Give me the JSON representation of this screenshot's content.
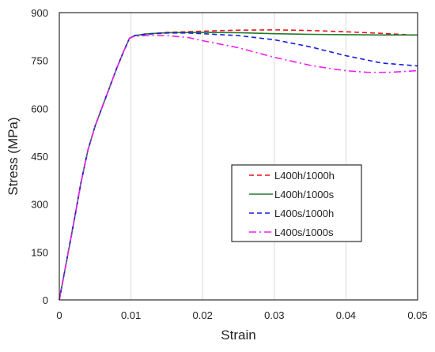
{
  "chart_data": {
    "type": "line",
    "title": "",
    "xlabel": "Strain",
    "ylabel": "Stress (MPa)",
    "xlim": [
      0,
      0.05
    ],
    "ylim": [
      0,
      900
    ],
    "xticks": [
      0,
      0.01,
      0.02,
      0.03,
      0.04,
      0.05
    ],
    "xtick_labels": [
      "0",
      "0.01",
      "0.02",
      "0.03",
      "0.04",
      "0.05"
    ],
    "yticks": [
      0,
      150,
      300,
      450,
      600,
      750,
      900
    ],
    "ytick_labels": [
      "0",
      "150",
      "300",
      "450",
      "600",
      "750",
      "900"
    ],
    "grid": "vertical",
    "legend_position": "center-right",
    "series": [
      {
        "name": "L400h/1000h",
        "color": "#e8141e",
        "dash": "dashed",
        "x": [
          0,
          0.001,
          0.002,
          0.003,
          0.004,
          0.005,
          0.006,
          0.007,
          0.008,
          0.009,
          0.0098,
          0.0105,
          0.012,
          0.015,
          0.02,
          0.025,
          0.03,
          0.035,
          0.04,
          0.045,
          0.05
        ],
        "y": [
          0,
          120,
          240,
          365,
          470,
          545,
          605,
          665,
          725,
          780,
          820,
          828,
          833,
          838,
          842,
          845,
          846,
          844,
          840,
          835,
          829
        ]
      },
      {
        "name": "L400h/1000s",
        "color": "#1e7a2c",
        "dash": "solid",
        "x": [
          0,
          0.001,
          0.002,
          0.003,
          0.004,
          0.005,
          0.006,
          0.007,
          0.008,
          0.009,
          0.0098,
          0.0105,
          0.012,
          0.015,
          0.02,
          0.025,
          0.03,
          0.035,
          0.04,
          0.045,
          0.05
        ],
        "y": [
          0,
          120,
          240,
          365,
          470,
          545,
          605,
          665,
          725,
          780,
          820,
          828,
          833,
          837,
          838,
          837,
          834,
          832,
          831,
          830,
          830
        ]
      },
      {
        "name": "L400s/1000h",
        "color": "#1a1ae0",
        "dash": "dashed",
        "x": [
          0,
          0.001,
          0.002,
          0.003,
          0.004,
          0.005,
          0.006,
          0.007,
          0.008,
          0.009,
          0.0098,
          0.0105,
          0.012,
          0.015,
          0.018,
          0.02,
          0.025,
          0.03,
          0.035,
          0.04,
          0.045,
          0.05
        ],
        "y": [
          0,
          120,
          240,
          365,
          470,
          545,
          605,
          665,
          725,
          780,
          820,
          828,
          832,
          836,
          836,
          834,
          828,
          815,
          793,
          765,
          742,
          733
        ]
      },
      {
        "name": "L400s/1000s",
        "color": "#f01ef0",
        "dash": "dashdot",
        "x": [
          0,
          0.001,
          0.002,
          0.003,
          0.004,
          0.005,
          0.006,
          0.007,
          0.008,
          0.009,
          0.0098,
          0.0105,
          0.012,
          0.015,
          0.018,
          0.02,
          0.025,
          0.03,
          0.035,
          0.038,
          0.04,
          0.043,
          0.046,
          0.05
        ],
        "y": [
          0,
          120,
          240,
          365,
          470,
          545,
          605,
          665,
          725,
          780,
          820,
          826,
          828,
          828,
          822,
          812,
          790,
          760,
          735,
          724,
          718,
          713,
          713,
          718
        ]
      }
    ]
  }
}
